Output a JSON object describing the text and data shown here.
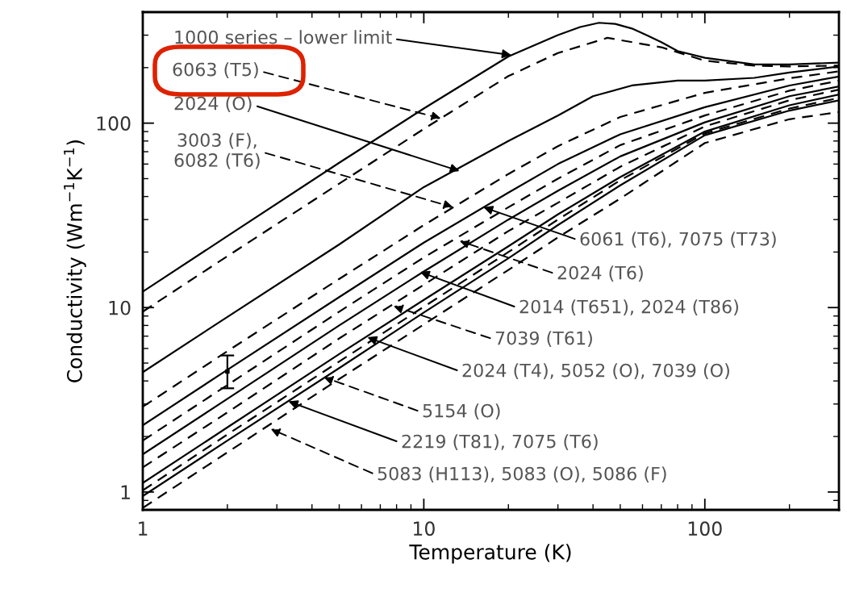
{
  "chart_data": {
    "type": "line",
    "xlabel": "Temperature (K)",
    "ylabel": "Conductivity (Wm$^{−1}$K$^{−1}$)",
    "log": "xy",
    "xlim": [
      1,
      300
    ],
    "ylim": [
      0.8,
      400
    ],
    "xticks": [
      1,
      10,
      100
    ],
    "yticks": [
      1,
      10,
      100
    ],
    "grid": false,
    "legend": false,
    "series": [
      {
        "color": "#000000",
        "line_style": "solid",
        "x": [
          1,
          2,
          5,
          10,
          20,
          30,
          36,
          42,
          48,
          55,
          62,
          70,
          80,
          100,
          150,
          200,
          300
        ],
        "values": [
          12.2,
          24.4,
          61,
          120,
          230,
          300,
          332,
          350,
          345,
          326,
          300,
          275,
          246,
          226,
          208,
          208,
          213
        ]
      },
      {
        "color": "#000000",
        "line_style": "dashed",
        "x": [
          1,
          2,
          5,
          10,
          20,
          30,
          45,
          70,
          100,
          150,
          200,
          300
        ],
        "values": [
          9.5,
          19,
          47,
          93,
          180,
          240,
          290,
          258,
          218,
          205,
          203,
          205
        ]
      },
      {
        "color": "#000000",
        "line_style": "solid",
        "x": [
          1,
          2,
          5,
          10,
          20,
          30,
          40,
          55,
          80,
          100,
          150,
          200,
          300
        ],
        "values": [
          4.46,
          8.9,
          22,
          45,
          80,
          110,
          140,
          160,
          170,
          170,
          176,
          188,
          203
        ]
      },
      {
        "color": "#000000",
        "line_style": "dashed",
        "x": [
          1,
          2,
          5,
          10,
          20,
          30,
          50,
          100,
          200,
          300
        ],
        "values": [
          2.9,
          5.8,
          14.3,
          28,
          53,
          75,
          108,
          146,
          175,
          191
        ]
      },
      {
        "color": "#000000",
        "line_style": "solid",
        "x": [
          1,
          2,
          5,
          10,
          20,
          30,
          50,
          100,
          200,
          300
        ],
        "values": [
          2.3,
          4.6,
          11.4,
          22.5,
          42,
          60,
          87,
          122,
          160,
          179
        ]
      },
      {
        "color": "#000000",
        "line_style": "dashed",
        "x": [
          1,
          2,
          5,
          10,
          20,
          30,
          50,
          100,
          200,
          300
        ],
        "values": [
          1.9,
          3.8,
          9.5,
          18.7,
          35,
          50,
          76,
          110,
          150,
          170
        ]
      },
      {
        "color": "#000000",
        "line_style": "solid",
        "x": [
          1,
          2,
          5,
          10,
          20,
          30,
          50,
          100,
          200,
          300
        ],
        "values": [
          1.6,
          3.2,
          8.0,
          15.7,
          30,
          43,
          66,
          101,
          140,
          158
        ]
      },
      {
        "color": "#000000",
        "line_style": "dashed",
        "x": [
          1,
          2,
          5,
          10,
          20,
          30,
          50,
          100,
          200,
          300
        ],
        "values": [
          1.36,
          2.7,
          6.8,
          13.3,
          26,
          37,
          58,
          96,
          133,
          152
        ]
      },
      {
        "color": "#000000",
        "line_style": "solid",
        "x": [
          1,
          2,
          5,
          10,
          20,
          30,
          50,
          100,
          200,
          300
        ],
        "values": [
          1.12,
          2.24,
          5.6,
          11.0,
          21.5,
          32,
          51,
          90,
          125,
          143
        ]
      },
      {
        "color": "#000000",
        "line_style": "dashed",
        "x": [
          1,
          2,
          5,
          10,
          20,
          30,
          50,
          100,
          200,
          300
        ],
        "values": [
          1.02,
          2.05,
          5.1,
          10.1,
          20,
          30,
          49,
          88,
          120,
          137
        ]
      },
      {
        "color": "#000000",
        "line_style": "solid",
        "x": [
          1,
          2,
          5,
          10,
          20,
          30,
          50,
          100,
          200,
          300
        ],
        "values": [
          0.95,
          1.9,
          4.7,
          9.4,
          18.5,
          28,
          46,
          86,
          117,
          133
        ]
      },
      {
        "color": "#000000",
        "line_style": "dashed",
        "x": [
          1,
          2,
          5,
          10,
          20,
          30,
          50,
          100,
          200,
          300
        ],
        "values": [
          0.82,
          1.64,
          4.1,
          8.1,
          16,
          24,
          39,
          78,
          105,
          115
        ]
      },
      {
        "type": "scatter",
        "color": "#000000",
        "marker": "square",
        "x": [
          2
        ],
        "values": [
          4.5
        ],
        "errors": [
          [
            3.65,
            5.5
          ]
        ]
      }
    ],
    "annotations": [
      {
        "text": "1000 series – lower limit",
        "x": 20.5,
        "y": 234
      },
      {
        "text": "6063 (T5)",
        "x": 11.5,
        "y": 106
      },
      {
        "text": "2024 (O)",
        "x": 13.4,
        "y": 55
      },
      {
        "text": "3003 (F),\n6082 (T6)",
        "x": 12.7,
        "y": 35
      },
      {
        "text": "6061 (T6), 7075 (T73)",
        "x": 16.3,
        "y": 35
      },
      {
        "text": "2024 (T6)",
        "x": 13.4,
        "y": 23
      },
      {
        "text": "2014 (T651), 2024 (T86)",
        "x": 9.7,
        "y": 15.6
      },
      {
        "text": "7039 (T61)",
        "x": 7.8,
        "y": 10.2
      },
      {
        "text": "2024 (T4), 5052 (O), 7039 (O)",
        "x": 6.3,
        "y": 6.9
      },
      {
        "text": "5154 (O)",
        "x": 4.4,
        "y": 4.2
      },
      {
        "text": "2219 (T81), 7075 (T6)",
        "x": 3.3,
        "y": 3.1
      },
      {
        "text": "5083 (H113), 5083 (O), 5086 (F)",
        "x": 2.85,
        "y": 2.2
      }
    ]
  }
}
